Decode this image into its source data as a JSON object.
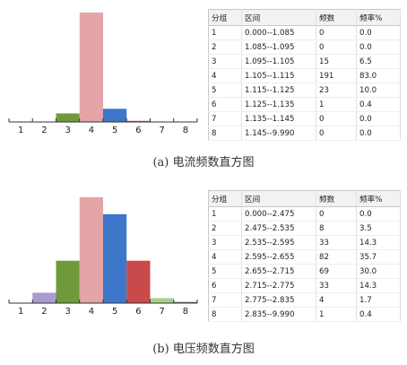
{
  "chart_data": [
    {
      "type": "bar",
      "categories": [
        "1",
        "2",
        "3",
        "4",
        "5",
        "6",
        "7",
        "8"
      ],
      "values": [
        0.0,
        0.0,
        6.5,
        83.0,
        10.0,
        0.4,
        0.0,
        0.0
      ],
      "colors": [
        "#8b83b8",
        "#8b83b8",
        "#6f9a3c",
        "#e3a5a7",
        "#3e77c9",
        "#c94a4a",
        "#a8d08d",
        "#6f6f6f"
      ],
      "ylim": [
        0,
        83
      ],
      "table": {
        "headers": [
          "分组",
          "区间",
          "频数",
          "频率%"
        ],
        "rows": [
          [
            "1",
            "0.000--1.085",
            "0",
            "0.0"
          ],
          [
            "2",
            "1.085--1.095",
            "0",
            "0.0"
          ],
          [
            "3",
            "1.095--1.105",
            "15",
            "6.5"
          ],
          [
            "4",
            "1.105--1.115",
            "191",
            "83.0"
          ],
          [
            "5",
            "1.115--1.125",
            "23",
            "10.0"
          ],
          [
            "6",
            "1.125--1.135",
            "1",
            "0.4"
          ],
          [
            "7",
            "1.135--1.145",
            "0",
            "0.0"
          ],
          [
            "8",
            "1.145--9.990",
            "0",
            "0.0"
          ]
        ]
      },
      "caption": "(a) 电流频数直方图"
    },
    {
      "type": "bar",
      "categories": [
        "1",
        "2",
        "3",
        "4",
        "5",
        "6",
        "7",
        "8"
      ],
      "values": [
        0.0,
        3.5,
        14.3,
        35.7,
        30.0,
        14.3,
        1.7,
        0.4
      ],
      "colors": [
        "#8b83b8",
        "#a99ad1",
        "#6f9a3c",
        "#e3a5a7",
        "#3e77c9",
        "#c94a4a",
        "#a8d08d",
        "#6f6f6f"
      ],
      "ylim": [
        0,
        35.7
      ],
      "table": {
        "headers": [
          "分组",
          "区间",
          "频数",
          "频率%"
        ],
        "rows": [
          [
            "1",
            "0.000--2.475",
            "0",
            "0.0"
          ],
          [
            "2",
            "2.475--2.535",
            "8",
            "3.5"
          ],
          [
            "3",
            "2.535--2.595",
            "33",
            "14.3"
          ],
          [
            "4",
            "2.595--2.655",
            "82",
            "35.7"
          ],
          [
            "5",
            "2.655--2.715",
            "69",
            "30.0"
          ],
          [
            "6",
            "2.715--2.775",
            "33",
            "14.3"
          ],
          [
            "7",
            "2.775--2.835",
            "4",
            "1.7"
          ],
          [
            "8",
            "2.835--9.990",
            "1",
            "0.4"
          ]
        ]
      },
      "caption": "(b) 电压频数直方图"
    }
  ]
}
